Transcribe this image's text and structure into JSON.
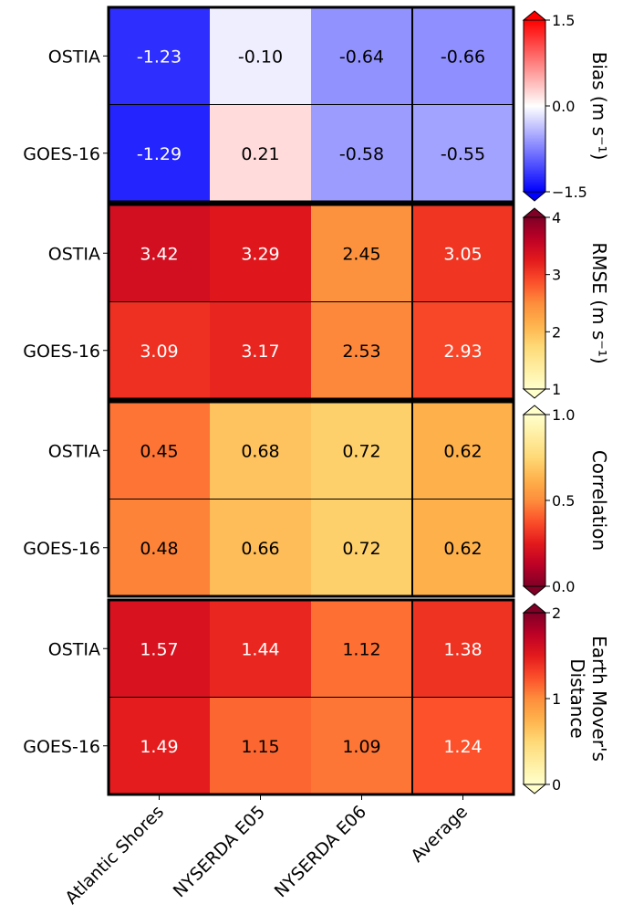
{
  "chart_data": {
    "type": "heatmap",
    "columns": [
      "Atlantic Shores",
      "NYSERDA E05",
      "NYSERDA E06",
      "Average"
    ],
    "rows": [
      "OSTIA",
      "GOES-16"
    ],
    "panels": [
      {
        "metric": "Bias",
        "colorbar_label": "Bias (m s⁻¹)",
        "colormap": "bwr",
        "vmin": -1.5,
        "vmax": 1.5,
        "ticks": [
          "−1.5",
          "0.0",
          "1.5"
        ],
        "tick_values": [
          -1.5,
          0.0,
          1.5
        ],
        "values": [
          [
            -1.23,
            -0.1,
            -0.64,
            -0.66
          ],
          [
            -1.29,
            0.21,
            -0.58,
            -0.55
          ]
        ],
        "labels": [
          [
            "-1.23",
            "-0.10",
            "-0.64",
            "-0.66"
          ],
          [
            "-1.29",
            "0.21",
            "-0.58",
            "-0.55"
          ]
        ]
      },
      {
        "metric": "RMSE",
        "colorbar_label": "RMSE (m s⁻¹)",
        "colormap": "YlOrRd",
        "vmin": 1,
        "vmax": 4,
        "ticks": [
          "1",
          "2",
          "3",
          "4"
        ],
        "tick_values": [
          1,
          2,
          3,
          4
        ],
        "values": [
          [
            3.42,
            3.29,
            2.45,
            3.05
          ],
          [
            3.09,
            3.17,
            2.53,
            2.93
          ]
        ],
        "labels": [
          [
            "3.42",
            "3.29",
            "2.45",
            "3.05"
          ],
          [
            "3.09",
            "3.17",
            "2.53",
            "2.93"
          ]
        ]
      },
      {
        "metric": "Correlation",
        "colorbar_label": "Correlation",
        "colormap": "YlOrRd_r",
        "vmin": 0,
        "vmax": 1,
        "ticks": [
          "0.0",
          "0.5",
          "1.0"
        ],
        "tick_values": [
          0,
          0.5,
          1
        ],
        "values": [
          [
            0.45,
            0.68,
            0.72,
            0.62
          ],
          [
            0.48,
            0.66,
            0.72,
            0.62
          ]
        ],
        "labels": [
          [
            "0.45",
            "0.68",
            "0.72",
            "0.62"
          ],
          [
            "0.48",
            "0.66",
            "0.72",
            "0.62"
          ]
        ]
      },
      {
        "metric": "Earth Mover's Distance",
        "colorbar_label_lines": [
          "Earth Mover's",
          "Distance"
        ],
        "colormap": "YlOrRd",
        "vmin": 0,
        "vmax": 2,
        "ticks": [
          "0",
          "1",
          "2"
        ],
        "tick_values": [
          0,
          1,
          2
        ],
        "values": [
          [
            1.57,
            1.44,
            1.12,
            1.38
          ],
          [
            1.49,
            1.15,
            1.09,
            1.24
          ]
        ],
        "labels": [
          [
            "1.57",
            "1.44",
            "1.12",
            "1.38"
          ],
          [
            "1.49",
            "1.15",
            "1.09",
            "1.24"
          ]
        ]
      }
    ]
  }
}
